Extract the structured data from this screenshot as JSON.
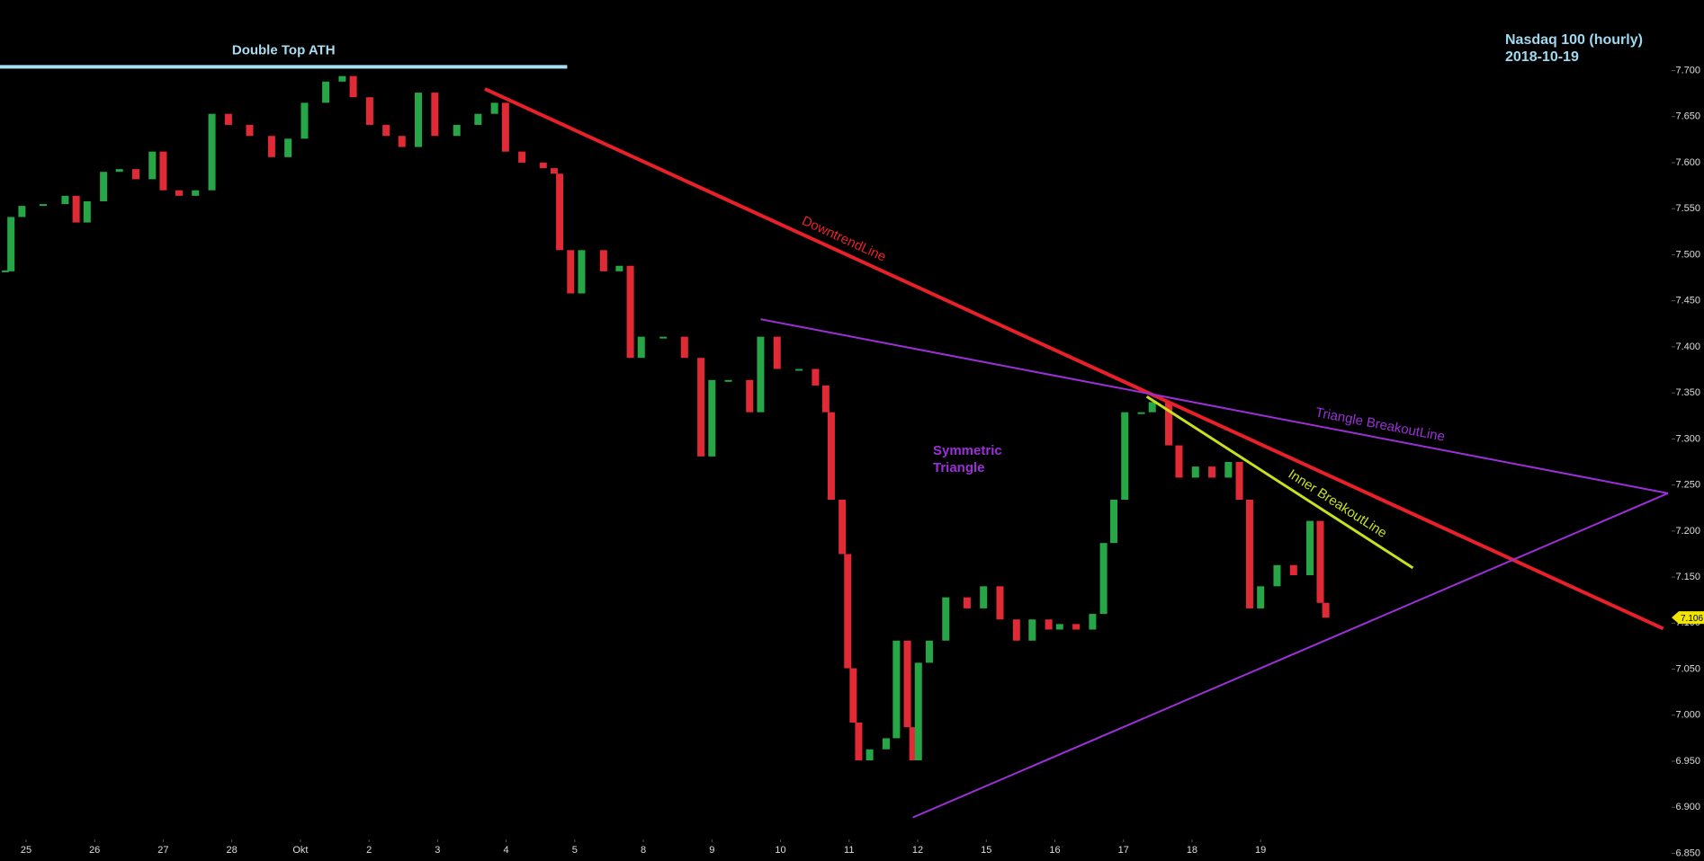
{
  "chart_data": {
    "type": "candlestick",
    "title": "Nasdaq 100 (hourly)",
    "subtitle": "2018-10-19",
    "x": [
      -0.3,
      -0.22,
      -0.06,
      0.25,
      0.57,
      0.73,
      0.89,
      1.13,
      1.36,
      1.6,
      1.84,
      2.0,
      2.23,
      2.47,
      2.71,
      2.95,
      3.26,
      3.58,
      3.82,
      4.06,
      4.37,
      4.61,
      4.77,
      5.01,
      5.25,
      5.48,
      5.72,
      5.96,
      6.28,
      6.59,
      6.83,
      6.99,
      7.23,
      7.54,
      7.7,
      7.78,
      7.94,
      8.1,
      8.42,
      8.65,
      8.81,
      8.97,
      9.29,
      9.6,
      9.84,
      10.0,
      10.24,
      10.55,
      10.71,
      10.95,
      11.27,
      11.51,
      11.66,
      11.74,
      11.9,
      11.98,
      12.06,
      12.14,
      12.3,
      12.54,
      12.69,
      12.85,
      12.93,
      13.01,
      13.17,
      13.41,
      13.72,
      13.96,
      14.2,
      14.44,
      14.67,
      14.91,
      15.07,
      15.31,
      15.55,
      15.71,
      15.86,
      16.02,
      16.26,
      16.42,
      16.66,
      16.81,
      17.05,
      17.29,
      17.53,
      17.69,
      17.84,
      18.0,
      18.24,
      18.48,
      18.72,
      18.87,
      18.95
    ],
    "values": [
      7.482,
      7.541,
      7.553,
      7.555,
      7.564,
      7.535,
      7.558,
      7.59,
      7.593,
      7.582,
      7.612,
      7.57,
      7.564,
      7.57,
      7.653,
      7.641,
      7.629,
      7.606,
      7.626,
      7.665,
      7.688,
      7.694,
      7.671,
      7.641,
      7.629,
      7.617,
      7.676,
      7.629,
      7.641,
      7.653,
      7.665,
      7.612,
      7.6,
      7.594,
      7.588,
      7.505,
      7.458,
      7.505,
      7.482,
      7.488,
      7.388,
      7.411,
      7.411,
      7.388,
      7.281,
      7.364,
      7.364,
      7.329,
      7.411,
      7.376,
      7.376,
      7.358,
      7.329,
      7.234,
      7.175,
      7.051,
      6.992,
      6.951,
      6.963,
      6.975,
      7.081,
      6.987,
      6.951,
      7.057,
      7.081,
      7.128,
      7.116,
      7.14,
      7.104,
      7.081,
      7.104,
      7.093,
      7.099,
      7.093,
      7.11,
      7.187,
      7.234,
      7.329,
      7.329,
      7.34,
      7.293,
      7.258,
      7.27,
      7.258,
      7.275,
      7.234,
      7.116,
      7.14,
      7.163,
      7.152,
      7.211,
      7.122,
      7.106
    ],
    "up_color": "#26a646",
    "down_color": "#e02a35",
    "last_price": 7.106,
    "last_price_color": "#f2e600",
    "xlim": [
      -0.38,
      23.94
    ],
    "xticks": [
      {
        "value": 0,
        "label": "25"
      },
      {
        "value": 1,
        "label": "26"
      },
      {
        "value": 2,
        "label": "27"
      },
      {
        "value": 3,
        "label": "28"
      },
      {
        "value": 4,
        "label": "Okt"
      },
      {
        "value": 5,
        "label": "2"
      },
      {
        "value": 6,
        "label": "3"
      },
      {
        "value": 7,
        "label": "4"
      },
      {
        "value": 8,
        "label": "5"
      },
      {
        "value": 9,
        "label": "8"
      },
      {
        "value": 10,
        "label": "9"
      },
      {
        "value": 11,
        "label": "10"
      },
      {
        "value": 12,
        "label": "11"
      },
      {
        "value": 13,
        "label": "12"
      },
      {
        "value": 14,
        "label": "15"
      },
      {
        "value": 15,
        "label": "16"
      },
      {
        "value": 16,
        "label": "17"
      },
      {
        "value": 17,
        "label": "18"
      },
      {
        "value": 18,
        "label": "19"
      }
    ],
    "ylim": [
      6.85,
      7.7
    ],
    "yticks": [
      {
        "value": 6.85,
        "label": "6.850"
      },
      {
        "value": 6.9,
        "label": "6.900"
      },
      {
        "value": 6.95,
        "label": "6.950"
      },
      {
        "value": 7.0,
        "label": "7.000"
      },
      {
        "value": 7.05,
        "label": "7.050"
      },
      {
        "value": 7.1,
        "label": "7.100"
      },
      {
        "value": 7.15,
        "label": "7.150"
      },
      {
        "value": 7.2,
        "label": "7.200"
      },
      {
        "value": 7.25,
        "label": "7.250"
      },
      {
        "value": 7.3,
        "label": "7.300"
      },
      {
        "value": 7.35,
        "label": "7.350"
      },
      {
        "value": 7.4,
        "label": "7.400"
      },
      {
        "value": 7.45,
        "label": "7.450"
      },
      {
        "value": 7.5,
        "label": "7.500"
      },
      {
        "value": 7.55,
        "label": "7.550"
      },
      {
        "value": 7.6,
        "label": "7.600"
      },
      {
        "value": 7.65,
        "label": "7.650"
      },
      {
        "value": 7.7,
        "label": "7.700"
      }
    ],
    "grid": false,
    "annotations": [
      {
        "label": "Double Top ATH",
        "color": "#a8dcf0",
        "x": [
          -0.38,
          7.89
        ],
        "y": [
          7.704,
          7.704
        ]
      },
      {
        "label": "DowntrendLine",
        "color": "#e8202a",
        "x": [
          6.69,
          23.87
        ],
        "y": [
          7.68,
          7.094
        ]
      },
      {
        "label": "Triangle BreakoutLine",
        "color": "#9b30d8",
        "x": [
          10.71,
          23.94
        ],
        "y": [
          7.43,
          7.241
        ]
      },
      {
        "label": "Inner BreakoutLine",
        "color": "#c8e020",
        "x": [
          16.34,
          20.22
        ],
        "y": [
          7.346,
          7.16
        ]
      }
    ],
    "lower_line": {
      "color": "#9b30d8",
      "x": [
        12.93,
        23.94
      ],
      "y": [
        6.889,
        7.241
      ]
    },
    "pattern_label": {
      "lines": [
        "Symmetric",
        "Triangle"
      ],
      "color": "#9b30d8"
    }
  }
}
